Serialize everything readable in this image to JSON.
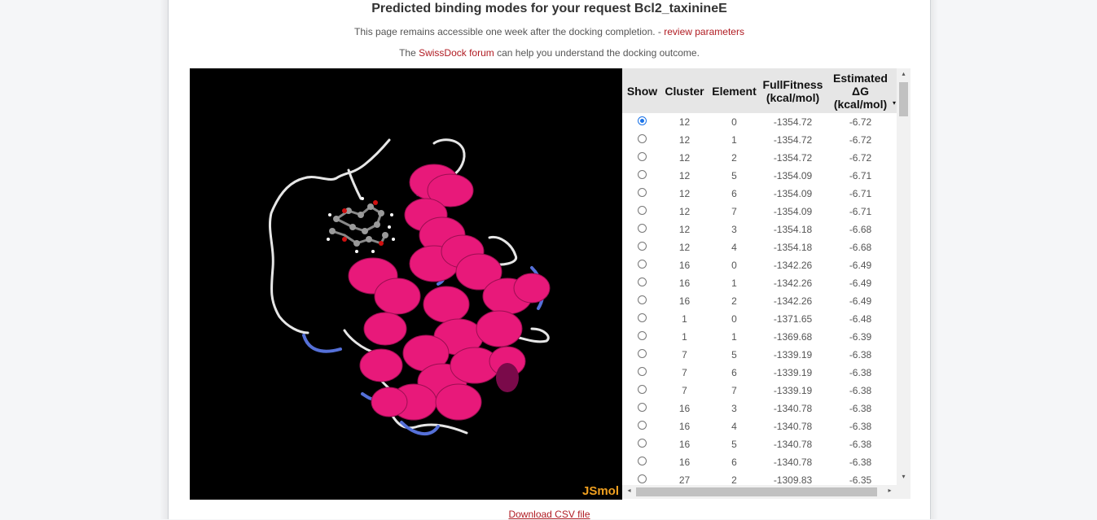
{
  "header": {
    "title": "Predicted binding modes for your request Bcl2_taxinineE",
    "notice_text": "This page remains accessible one week after the docking completion. - ",
    "notice_link": "review parameters",
    "forum_prefix": "The ",
    "forum_link": "SwissDock forum",
    "forum_suffix": " can help you understand the docking outcome."
  },
  "viewer": {
    "logo": "JSmol",
    "background": "#000000",
    "helix_color": "#e8197a",
    "loop_color": "#e6e6e6",
    "strand_color": "#5570d8"
  },
  "table": {
    "columns": {
      "show": "Show",
      "cluster": "Cluster",
      "element": "Element",
      "fullfitness_line1": "FullFitness",
      "fullfitness_line2": "(kcal/mol)",
      "dg_line1": "Estimated",
      "dg_line2": "ΔG",
      "dg_line3": "(kcal/mol)"
    },
    "sort_indicator": "▾",
    "selected_index": 0,
    "rows": [
      {
        "cluster": "12",
        "element": "0",
        "fullfitness": "-1354.72",
        "dg": "-6.72"
      },
      {
        "cluster": "12",
        "element": "1",
        "fullfitness": "-1354.72",
        "dg": "-6.72"
      },
      {
        "cluster": "12",
        "element": "2",
        "fullfitness": "-1354.72",
        "dg": "-6.72"
      },
      {
        "cluster": "12",
        "element": "5",
        "fullfitness": "-1354.09",
        "dg": "-6.71"
      },
      {
        "cluster": "12",
        "element": "6",
        "fullfitness": "-1354.09",
        "dg": "-6.71"
      },
      {
        "cluster": "12",
        "element": "7",
        "fullfitness": "-1354.09",
        "dg": "-6.71"
      },
      {
        "cluster": "12",
        "element": "3",
        "fullfitness": "-1354.18",
        "dg": "-6.68"
      },
      {
        "cluster": "12",
        "element": "4",
        "fullfitness": "-1354.18",
        "dg": "-6.68"
      },
      {
        "cluster": "16",
        "element": "0",
        "fullfitness": "-1342.26",
        "dg": "-6.49"
      },
      {
        "cluster": "16",
        "element": "1",
        "fullfitness": "-1342.26",
        "dg": "-6.49"
      },
      {
        "cluster": "16",
        "element": "2",
        "fullfitness": "-1342.26",
        "dg": "-6.49"
      },
      {
        "cluster": "1",
        "element": "0",
        "fullfitness": "-1371.65",
        "dg": "-6.48"
      },
      {
        "cluster": "1",
        "element": "1",
        "fullfitness": "-1369.68",
        "dg": "-6.39"
      },
      {
        "cluster": "7",
        "element": "5",
        "fullfitness": "-1339.19",
        "dg": "-6.38"
      },
      {
        "cluster": "7",
        "element": "6",
        "fullfitness": "-1339.19",
        "dg": "-6.38"
      },
      {
        "cluster": "7",
        "element": "7",
        "fullfitness": "-1339.19",
        "dg": "-6.38"
      },
      {
        "cluster": "16",
        "element": "3",
        "fullfitness": "-1340.78",
        "dg": "-6.38"
      },
      {
        "cluster": "16",
        "element": "4",
        "fullfitness": "-1340.78",
        "dg": "-6.38"
      },
      {
        "cluster": "16",
        "element": "5",
        "fullfitness": "-1340.78",
        "dg": "-6.38"
      },
      {
        "cluster": "16",
        "element": "6",
        "fullfitness": "-1340.78",
        "dg": "-6.38"
      },
      {
        "cluster": "27",
        "element": "2",
        "fullfitness": "-1309.83",
        "dg": "-6.35"
      }
    ]
  },
  "scroll": {
    "up_arrow": "▴",
    "down_arrow": "▾",
    "left_arrow": "◂",
    "right_arrow": "▸"
  },
  "footer": {
    "download_label": "Download CSV file"
  }
}
